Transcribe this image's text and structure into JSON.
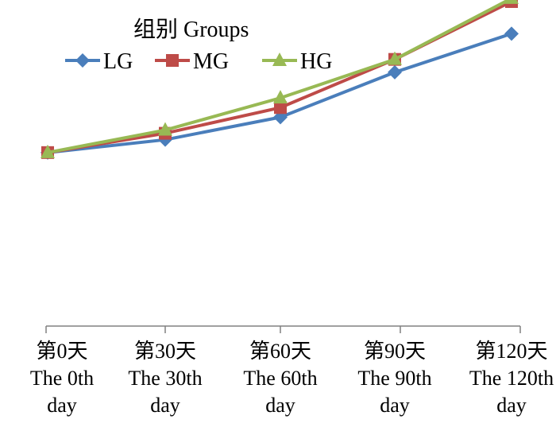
{
  "chart_data": {
    "type": "line",
    "legend_title": "组别 Groups",
    "legend_position": "top-left",
    "categories": [
      [
        "第0天",
        "The 0th",
        "day"
      ],
      [
        "第30天",
        "The 30th",
        "day"
      ],
      [
        "第60天",
        "The 60th",
        "day"
      ],
      [
        "第90天",
        "The 90th",
        "day"
      ],
      [
        "第120天",
        "The 120th",
        "day"
      ]
    ],
    "ylim": [
      0,
      100
    ],
    "y_axis_visible": false,
    "grid": false,
    "series": [
      {
        "name": "LG",
        "color": "#4a7ebb",
        "marker": "diamond",
        "values": [
          54,
          58,
          65,
          79,
          91
        ]
      },
      {
        "name": "MG",
        "color": "#be4b48",
        "marker": "square",
        "values": [
          54,
          60,
          68,
          83,
          101
        ]
      },
      {
        "name": "HG",
        "color": "#98b954",
        "marker": "triangle",
        "values": [
          54,
          61,
          71,
          83,
          102
        ]
      }
    ]
  }
}
